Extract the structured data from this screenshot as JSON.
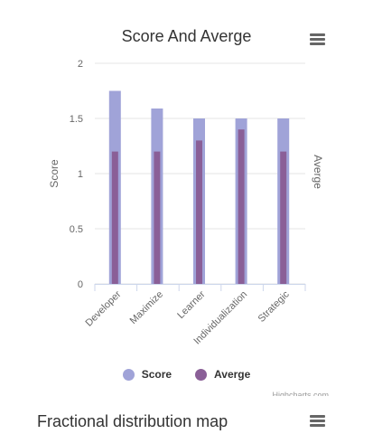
{
  "chart_data": {
    "type": "bar",
    "title": "Score And Averge",
    "categories": [
      "Developer",
      "Maximize",
      "Learner",
      "Individualization",
      "Strategic"
    ],
    "series": [
      {
        "name": "Score",
        "color": "#a0a3d8",
        "values": [
          1.75,
          1.59,
          1.5,
          1.5,
          1.5
        ]
      },
      {
        "name": "Averge",
        "color": "#8a5f97",
        "values": [
          1.2,
          1.2,
          1.3,
          1.4,
          1.2
        ]
      }
    ],
    "ylabel": "Score",
    "y2label": "Averge",
    "ylim": [
      0,
      2
    ],
    "yticks": [
      "0",
      "0.5",
      "1",
      "1.5",
      "2"
    ],
    "ytick_values": [
      0,
      0.5,
      1,
      1.5,
      2
    ],
    "grid": true,
    "legend": "bottom-center"
  },
  "credits": "Highcharts.com",
  "second_chart": {
    "title": "Fractional distribution map"
  },
  "icons": {
    "menu": "hamburger-menu-icon"
  }
}
